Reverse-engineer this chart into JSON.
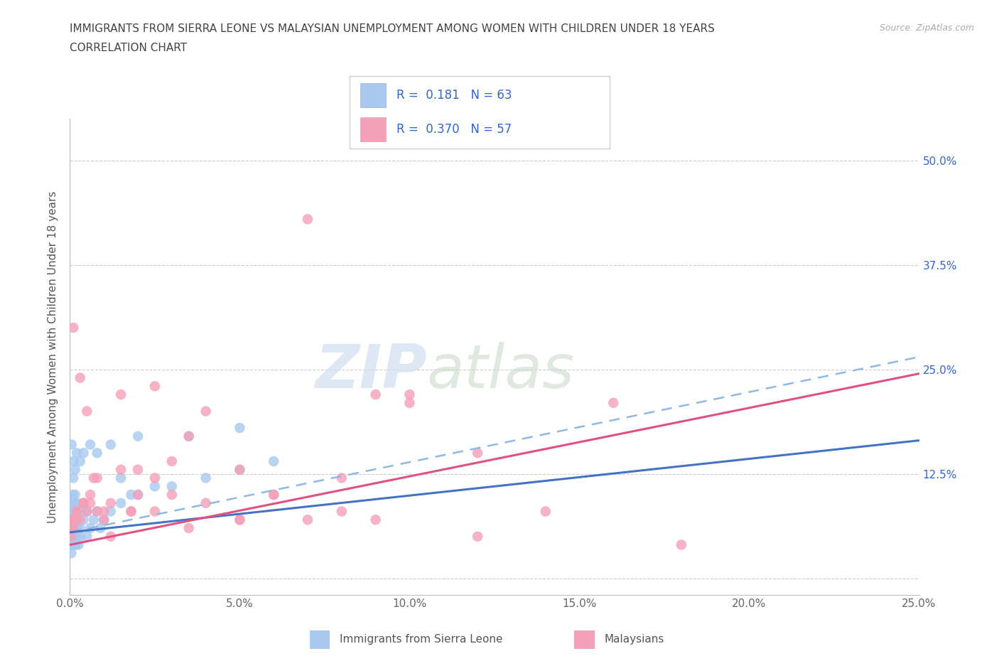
{
  "title": "IMMIGRANTS FROM SIERRA LEONE VS MALAYSIAN UNEMPLOYMENT AMONG WOMEN WITH CHILDREN UNDER 18 YEARS",
  "subtitle": "CORRELATION CHART",
  "source": "Source: ZipAtlas.com",
  "ylabel": "Unemployment Among Women with Children Under 18 years",
  "watermark_zip": "ZIP",
  "watermark_atlas": "atlas",
  "color_blue": "#a8c8f0",
  "color_pink": "#f4a0b8",
  "trendline_blue": "#4472c4",
  "trendline_pink": "#e05080",
  "trendline_dashed_color": "#90b8e0",
  "xlim": [
    0.0,
    0.25
  ],
  "ylim": [
    -0.02,
    0.55
  ],
  "ytick_vals": [
    0.0,
    0.125,
    0.25,
    0.375,
    0.5
  ],
  "ytick_labels": [
    "",
    "12.5%",
    "25.0%",
    "37.5%",
    "50.0%"
  ],
  "xtick_vals": [
    0.0,
    0.05,
    0.1,
    0.15,
    0.2,
    0.25
  ],
  "xtick_labels": [
    "0.0%",
    "5.0%",
    "10.0%",
    "15.0%",
    "20.0%",
    "25.0%"
  ],
  "grid_color": "#cccccc",
  "background_color": "#ffffff",
  "blue_scatter_x": [
    0.0002,
    0.0003,
    0.0003,
    0.0004,
    0.0005,
    0.0005,
    0.0006,
    0.0006,
    0.0007,
    0.0008,
    0.0008,
    0.0009,
    0.001,
    0.001,
    0.001,
    0.0012,
    0.0012,
    0.0013,
    0.0014,
    0.0015,
    0.0015,
    0.0016,
    0.0017,
    0.0018,
    0.002,
    0.002,
    0.0022,
    0.0022,
    0.0025,
    0.003,
    0.003,
    0.003,
    0.004,
    0.004,
    0.005,
    0.005,
    0.006,
    0.007,
    0.008,
    0.009,
    0.01,
    0.012,
    0.015,
    0.018,
    0.02,
    0.025,
    0.03,
    0.04,
    0.05,
    0.06,
    0.0005,
    0.001,
    0.0015,
    0.002,
    0.003,
    0.004,
    0.006,
    0.008,
    0.012,
    0.02,
    0.035,
    0.05,
    0.015
  ],
  "blue_scatter_y": [
    0.04,
    0.05,
    0.07,
    0.03,
    0.06,
    0.09,
    0.04,
    0.08,
    0.05,
    0.06,
    0.1,
    0.04,
    0.05,
    0.08,
    0.12,
    0.06,
    0.09,
    0.04,
    0.07,
    0.05,
    0.1,
    0.06,
    0.08,
    0.04,
    0.05,
    0.07,
    0.06,
    0.09,
    0.04,
    0.05,
    0.08,
    0.06,
    0.07,
    0.09,
    0.05,
    0.08,
    0.06,
    0.07,
    0.08,
    0.06,
    0.07,
    0.08,
    0.09,
    0.1,
    0.1,
    0.11,
    0.11,
    0.12,
    0.13,
    0.14,
    0.16,
    0.14,
    0.13,
    0.15,
    0.14,
    0.15,
    0.16,
    0.15,
    0.16,
    0.17,
    0.17,
    0.18,
    0.12
  ],
  "pink_scatter_x": [
    0.0003,
    0.0005,
    0.0008,
    0.001,
    0.0015,
    0.002,
    0.003,
    0.004,
    0.005,
    0.006,
    0.008,
    0.01,
    0.012,
    0.015,
    0.018,
    0.02,
    0.025,
    0.03,
    0.035,
    0.04,
    0.05,
    0.06,
    0.07,
    0.08,
    0.09,
    0.1,
    0.12,
    0.14,
    0.18,
    0.001,
    0.002,
    0.003,
    0.005,
    0.007,
    0.01,
    0.015,
    0.02,
    0.025,
    0.03,
    0.04,
    0.05,
    0.06,
    0.08,
    0.1,
    0.12,
    0.16,
    0.002,
    0.004,
    0.006,
    0.008,
    0.012,
    0.018,
    0.025,
    0.035,
    0.05,
    0.07,
    0.09
  ],
  "pink_scatter_y": [
    0.05,
    0.06,
    0.07,
    0.06,
    0.07,
    0.08,
    0.07,
    0.09,
    0.08,
    0.09,
    0.08,
    0.07,
    0.09,
    0.22,
    0.08,
    0.1,
    0.08,
    0.1,
    0.17,
    0.2,
    0.13,
    0.1,
    0.07,
    0.08,
    0.22,
    0.21,
    0.15,
    0.08,
    0.04,
    0.3,
    0.07,
    0.24,
    0.2,
    0.12,
    0.08,
    0.13,
    0.13,
    0.12,
    0.14,
    0.09,
    0.07,
    0.1,
    0.12,
    0.22,
    0.05,
    0.21,
    0.08,
    0.09,
    0.1,
    0.12,
    0.05,
    0.08,
    0.23,
    0.06,
    0.07,
    0.43,
    0.07
  ],
  "blue_trend_x0": 0.0,
  "blue_trend_y0": 0.055,
  "blue_trend_x1": 0.25,
  "blue_trend_y1": 0.165,
  "pink_trend_x0": 0.0,
  "pink_trend_y0": 0.04,
  "pink_trend_x1": 0.25,
  "pink_trend_y1": 0.245,
  "dashed_trend_x0": 0.0,
  "dashed_trend_y0": 0.055,
  "dashed_trend_x1": 0.25,
  "dashed_trend_y1": 0.265,
  "legend_label1": "R =  0.181   N = 63",
  "legend_label2": "R =  0.370   N = 57",
  "legend_color": "#3366cc",
  "bottom_label1": "Immigrants from Sierra Leone",
  "bottom_label2": "Malaysians"
}
